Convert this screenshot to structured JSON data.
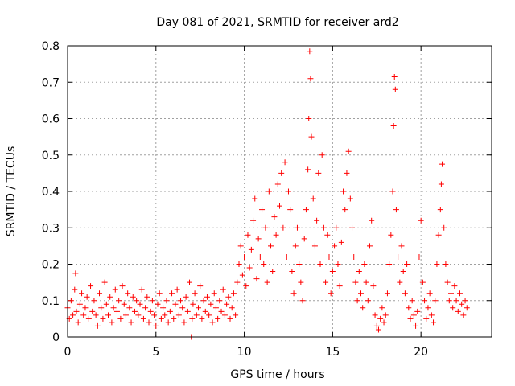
{
  "chart_data": {
    "type": "scatter",
    "title": "Day 081 of 2021, SRMTID for receiver ard2",
    "xlabel": "GPS time / hours",
    "ylabel": "SRMTID / TECUs",
    "xlim": [
      0,
      24
    ],
    "ylim": [
      0,
      0.8
    ],
    "x_ticks": [
      0,
      5,
      10,
      15,
      20
    ],
    "y_ticks": [
      0,
      0.1,
      0.2,
      0.3,
      0.4,
      0.5,
      0.6,
      0.7,
      0.8
    ],
    "x_tick_labels": [
      "0",
      "5",
      "10",
      "15",
      "20"
    ],
    "y_tick_labels": [
      "0",
      "0.1",
      "0.2",
      "0.3",
      "0.4",
      "0.5",
      "0.6",
      "0.7",
      "0.8"
    ],
    "grid": true,
    "marker": "+",
    "point_color": "#ff0000",
    "series": [
      {
        "name": "SRMTID",
        "points": [
          [
            0.0,
            0.08
          ],
          [
            0.1,
            0.05
          ],
          [
            0.2,
            0.1
          ],
          [
            0.3,
            0.06
          ],
          [
            0.4,
            0.13
          ],
          [
            0.45,
            0.175
          ],
          [
            0.5,
            0.07
          ],
          [
            0.6,
            0.04
          ],
          [
            0.7,
            0.09
          ],
          [
            0.8,
            0.12
          ],
          [
            0.9,
            0.06
          ],
          [
            1.0,
            0.08
          ],
          [
            1.1,
            0.11
          ],
          [
            1.2,
            0.05
          ],
          [
            1.3,
            0.14
          ],
          [
            1.4,
            0.07
          ],
          [
            1.5,
            0.1
          ],
          [
            1.6,
            0.06
          ],
          [
            1.7,
            0.03
          ],
          [
            1.8,
            0.12
          ],
          [
            1.9,
            0.08
          ],
          [
            2.0,
            0.05
          ],
          [
            2.1,
            0.15
          ],
          [
            2.2,
            0.09
          ],
          [
            2.3,
            0.06
          ],
          [
            2.4,
            0.11
          ],
          [
            2.5,
            0.04
          ],
          [
            2.6,
            0.08
          ],
          [
            2.7,
            0.13
          ],
          [
            2.8,
            0.07
          ],
          [
            2.9,
            0.1
          ],
          [
            3.0,
            0.05
          ],
          [
            3.1,
            0.14
          ],
          [
            3.2,
            0.09
          ],
          [
            3.3,
            0.06
          ],
          [
            3.4,
            0.12
          ],
          [
            3.5,
            0.08
          ],
          [
            3.6,
            0.04
          ],
          [
            3.7,
            0.11
          ],
          [
            3.8,
            0.07
          ],
          [
            3.9,
            0.1
          ],
          [
            4.0,
            0.06
          ],
          [
            4.1,
            0.09
          ],
          [
            4.2,
            0.13
          ],
          [
            4.3,
            0.05
          ],
          [
            4.4,
            0.08
          ],
          [
            4.5,
            0.11
          ],
          [
            4.6,
            0.04
          ],
          [
            4.7,
            0.07
          ],
          [
            4.8,
            0.1
          ],
          [
            4.9,
            0.06
          ],
          [
            5.0,
            0.03
          ],
          [
            5.1,
            0.09
          ],
          [
            5.2,
            0.12
          ],
          [
            5.3,
            0.05
          ],
          [
            5.4,
            0.08
          ],
          [
            5.5,
            0.06
          ],
          [
            5.6,
            0.1
          ],
          [
            5.7,
            0.04
          ],
          [
            5.8,
            0.07
          ],
          [
            5.9,
            0.12
          ],
          [
            6.0,
            0.05
          ],
          [
            6.1,
            0.09
          ],
          [
            6.2,
            0.13
          ],
          [
            6.3,
            0.06
          ],
          [
            6.4,
            0.1
          ],
          [
            6.5,
            0.08
          ],
          [
            6.6,
            0.04
          ],
          [
            6.7,
            0.11
          ],
          [
            6.8,
            0.07
          ],
          [
            6.9,
            0.15
          ],
          [
            7.0,
            0.0
          ],
          [
            7.05,
            0.05
          ],
          [
            7.1,
            0.09
          ],
          [
            7.2,
            0.12
          ],
          [
            7.3,
            0.06
          ],
          [
            7.4,
            0.08
          ],
          [
            7.5,
            0.14
          ],
          [
            7.6,
            0.05
          ],
          [
            7.7,
            0.1
          ],
          [
            7.8,
            0.07
          ],
          [
            7.9,
            0.11
          ],
          [
            8.0,
            0.06
          ],
          [
            8.1,
            0.09
          ],
          [
            8.2,
            0.04
          ],
          [
            8.3,
            0.12
          ],
          [
            8.4,
            0.08
          ],
          [
            8.5,
            0.05
          ],
          [
            8.6,
            0.1
          ],
          [
            8.7,
            0.07
          ],
          [
            8.8,
            0.13
          ],
          [
            8.9,
            0.06
          ],
          [
            9.0,
            0.09
          ],
          [
            9.1,
            0.11
          ],
          [
            9.2,
            0.05
          ],
          [
            9.3,
            0.08
          ],
          [
            9.4,
            0.12
          ],
          [
            9.5,
            0.06
          ],
          [
            9.6,
            0.15
          ],
          [
            9.7,
            0.2
          ],
          [
            9.8,
            0.25
          ],
          [
            9.9,
            0.17
          ],
          [
            10.0,
            0.22
          ],
          [
            10.1,
            0.14
          ],
          [
            10.2,
            0.28
          ],
          [
            10.3,
            0.19
          ],
          [
            10.4,
            0.24
          ],
          [
            10.5,
            0.32
          ],
          [
            10.6,
            0.38
          ],
          [
            10.7,
            0.16
          ],
          [
            10.8,
            0.27
          ],
          [
            10.9,
            0.22
          ],
          [
            11.0,
            0.35
          ],
          [
            11.1,
            0.2
          ],
          [
            11.2,
            0.3
          ],
          [
            11.3,
            0.15
          ],
          [
            11.4,
            0.4
          ],
          [
            11.5,
            0.25
          ],
          [
            11.6,
            0.18
          ],
          [
            11.7,
            0.33
          ],
          [
            11.8,
            0.28
          ],
          [
            11.9,
            0.42
          ],
          [
            12.0,
            0.36
          ],
          [
            12.1,
            0.45
          ],
          [
            12.2,
            0.3
          ],
          [
            12.3,
            0.48
          ],
          [
            12.4,
            0.22
          ],
          [
            12.5,
            0.4
          ],
          [
            12.6,
            0.35
          ],
          [
            12.7,
            0.18
          ],
          [
            12.8,
            0.12
          ],
          [
            12.9,
            0.25
          ],
          [
            13.0,
            0.3
          ],
          [
            13.1,
            0.2
          ],
          [
            13.2,
            0.15
          ],
          [
            13.3,
            0.1
          ],
          [
            13.4,
            0.27
          ],
          [
            13.5,
            0.35
          ],
          [
            13.6,
            0.46
          ],
          [
            13.65,
            0.6
          ],
          [
            13.7,
            0.785
          ],
          [
            13.75,
            0.71
          ],
          [
            13.8,
            0.55
          ],
          [
            13.9,
            0.38
          ],
          [
            14.0,
            0.25
          ],
          [
            14.1,
            0.32
          ],
          [
            14.2,
            0.45
          ],
          [
            14.3,
            0.2
          ],
          [
            14.4,
            0.5
          ],
          [
            14.5,
            0.3
          ],
          [
            14.6,
            0.15
          ],
          [
            14.7,
            0.28
          ],
          [
            14.8,
            0.22
          ],
          [
            14.9,
            0.12
          ],
          [
            15.0,
            0.18
          ],
          [
            15.1,
            0.25
          ],
          [
            15.2,
            0.3
          ],
          [
            15.3,
            0.2
          ],
          [
            15.4,
            0.14
          ],
          [
            15.5,
            0.26
          ],
          [
            15.6,
            0.4
          ],
          [
            15.7,
            0.35
          ],
          [
            15.8,
            0.45
          ],
          [
            15.9,
            0.51
          ],
          [
            16.0,
            0.38
          ],
          [
            16.1,
            0.3
          ],
          [
            16.2,
            0.22
          ],
          [
            16.3,
            0.15
          ],
          [
            16.4,
            0.1
          ],
          [
            16.5,
            0.18
          ],
          [
            16.6,
            0.12
          ],
          [
            16.7,
            0.08
          ],
          [
            16.8,
            0.2
          ],
          [
            16.9,
            0.15
          ],
          [
            17.0,
            0.1
          ],
          [
            17.1,
            0.25
          ],
          [
            17.2,
            0.32
          ],
          [
            17.3,
            0.14
          ],
          [
            17.4,
            0.06
          ],
          [
            17.5,
            0.03
          ],
          [
            17.6,
            0.02
          ],
          [
            17.7,
            0.05
          ],
          [
            17.8,
            0.08
          ],
          [
            17.9,
            0.04
          ],
          [
            18.0,
            0.06
          ],
          [
            18.1,
            0.12
          ],
          [
            18.2,
            0.2
          ],
          [
            18.3,
            0.28
          ],
          [
            18.4,
            0.4
          ],
          [
            18.45,
            0.58
          ],
          [
            18.5,
            0.715
          ],
          [
            18.55,
            0.68
          ],
          [
            18.6,
            0.35
          ],
          [
            18.7,
            0.22
          ],
          [
            18.8,
            0.15
          ],
          [
            18.9,
            0.25
          ],
          [
            19.0,
            0.18
          ],
          [
            19.1,
            0.12
          ],
          [
            19.2,
            0.2
          ],
          [
            19.3,
            0.08
          ],
          [
            19.4,
            0.05
          ],
          [
            19.5,
            0.1
          ],
          [
            19.6,
            0.06
          ],
          [
            19.7,
            0.03
          ],
          [
            19.8,
            0.07
          ],
          [
            19.9,
            0.22
          ],
          [
            20.0,
            0.32
          ],
          [
            20.1,
            0.15
          ],
          [
            20.2,
            0.1
          ],
          [
            20.3,
            0.05
          ],
          [
            20.4,
            0.08
          ],
          [
            20.5,
            0.12
          ],
          [
            20.6,
            0.06
          ],
          [
            20.7,
            0.04
          ],
          [
            20.8,
            0.1
          ],
          [
            20.9,
            0.2
          ],
          [
            21.0,
            0.28
          ],
          [
            21.1,
            0.35
          ],
          [
            21.15,
            0.42
          ],
          [
            21.2,
            0.475
          ],
          [
            21.3,
            0.3
          ],
          [
            21.4,
            0.2
          ],
          [
            21.5,
            0.15
          ],
          [
            21.6,
            0.1
          ],
          [
            21.7,
            0.12
          ],
          [
            21.8,
            0.08
          ],
          [
            21.9,
            0.14
          ],
          [
            22.0,
            0.1
          ],
          [
            22.1,
            0.07
          ],
          [
            22.2,
            0.12
          ],
          [
            22.3,
            0.09
          ],
          [
            22.4,
            0.06
          ],
          [
            22.5,
            0.1
          ],
          [
            22.6,
            0.08
          ]
        ]
      }
    ]
  }
}
